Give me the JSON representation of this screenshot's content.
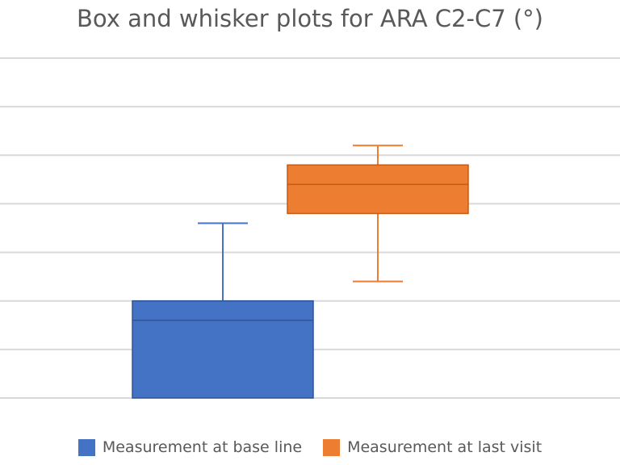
{
  "chart_data": {
    "type": "box",
    "title": "Box and whisker plots for ARA C2-C7 (°)",
    "xlabel": "",
    "ylabel": "",
    "ylim": [
      0,
      7
    ],
    "grid": true,
    "legend_position": "bottom",
    "series": [
      {
        "name": "Measurement at base line",
        "color": "#4472C4",
        "min": 0,
        "q1": 0,
        "median": 1.6,
        "q3": 2,
        "max": 3.6
      },
      {
        "name": "Measurement at last visit",
        "color": "#ED7D31",
        "min": 2.4,
        "q1": 3.8,
        "median": 4.4,
        "q3": 4.8,
        "max": 5.2
      }
    ]
  }
}
